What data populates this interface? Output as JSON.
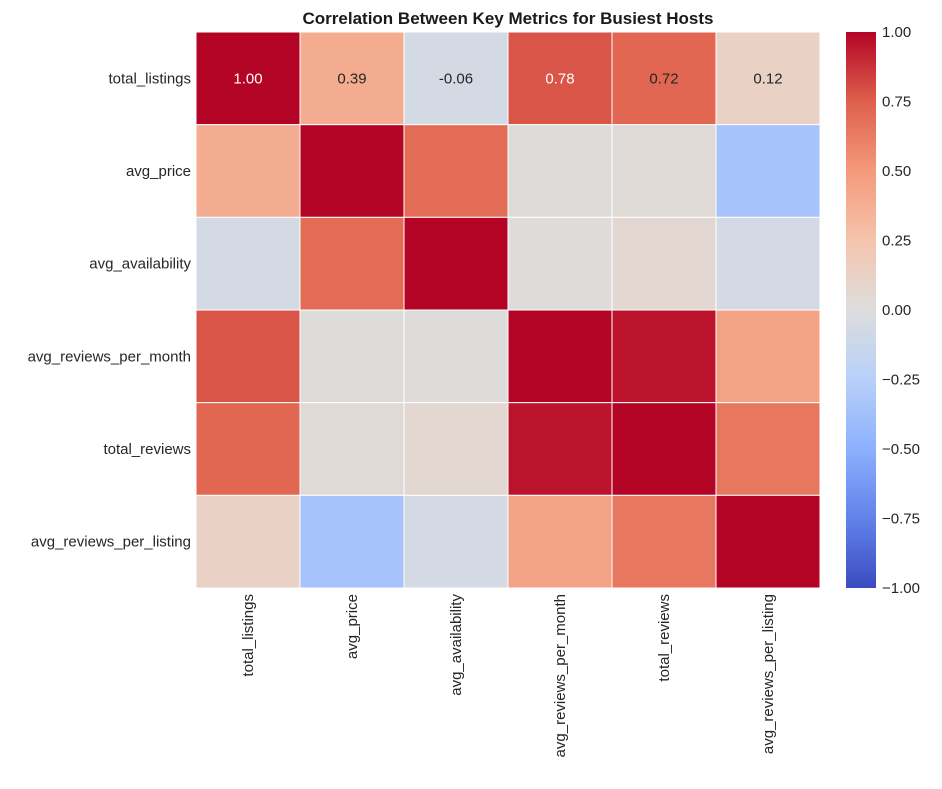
{
  "chart_data": {
    "type": "heatmap",
    "title": "Correlation Between Key Metrics for Busiest Hosts",
    "row_labels": [
      "total_listings",
      "avg_price",
      "avg_availability",
      "avg_reviews_per_month",
      "total_reviews",
      "avg_reviews_per_listing"
    ],
    "col_labels": [
      "total_listings",
      "avg_price",
      "avg_availability",
      "avg_reviews_per_month",
      "total_reviews",
      "avg_reviews_per_listing"
    ],
    "values": [
      [
        1.0,
        0.39,
        -0.06,
        0.78,
        0.72,
        0.12
      ],
      [
        0.39,
        1.0,
        0.7,
        0.01,
        0.03,
        -0.35
      ],
      [
        -0.06,
        0.7,
        1.0,
        0.01,
        0.06,
        -0.06
      ],
      [
        0.78,
        0.01,
        0.01,
        1.0,
        0.96,
        0.45
      ],
      [
        0.72,
        0.03,
        0.06,
        0.96,
        1.0,
        0.65
      ],
      [
        0.12,
        -0.35,
        -0.06,
        0.45,
        0.65,
        1.0
      ]
    ],
    "annotated_row_labels": [
      "1.00",
      "0.39",
      "-0.06",
      "0.78",
      "0.72",
      "0.12"
    ],
    "colormap": "coolwarm",
    "vmin": -1.0,
    "vmax": 1.0,
    "colorbar_ticks": [
      "1.00",
      "0.75",
      "0.50",
      "0.25",
      "0.00",
      "−0.25",
      "−0.50",
      "−0.75",
      "−1.00"
    ],
    "colorbar_tick_values": [
      1.0,
      0.75,
      0.5,
      0.25,
      0.0,
      -0.25,
      -0.5,
      -0.75,
      -1.0
    ],
    "colorbar_position": "right",
    "grid": false
  }
}
